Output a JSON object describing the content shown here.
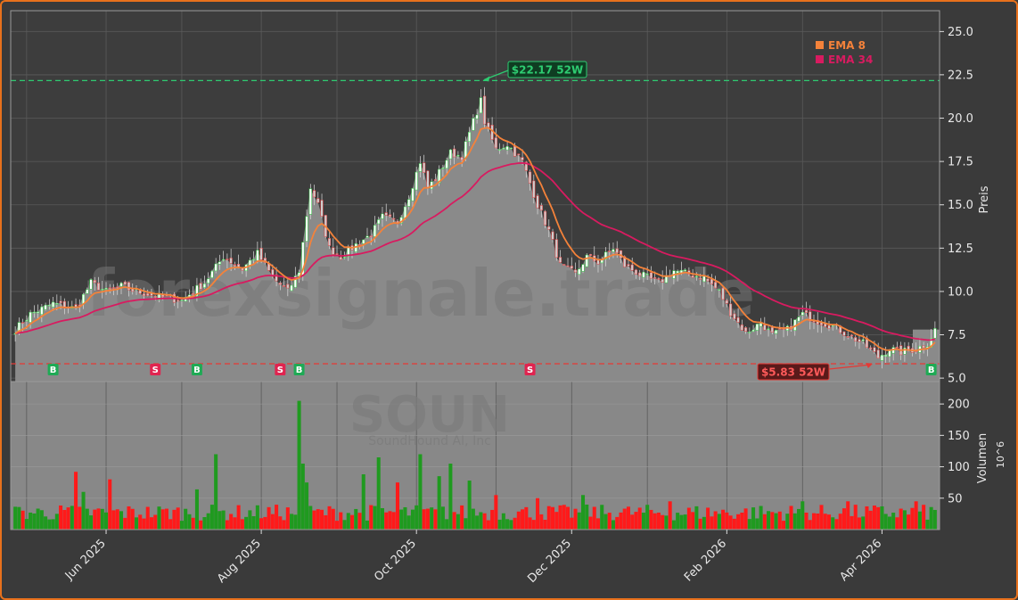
{
  "chart_data": {
    "type": "candlestick",
    "ticker": "SOUN",
    "company": "SoundHound AI, Inc",
    "watermark": "forexsignale.trade",
    "ylabel_price": "Preis",
    "ylabel_volume": "Volumen",
    "volume_unit": "10^6",
    "price_ylim": [
      4.8,
      26.2
    ],
    "price_ticks": [
      5.0,
      7.5,
      10.0,
      12.5,
      15.0,
      17.5,
      20.0,
      22.5,
      25.0
    ],
    "volume_ylim": [
      0,
      230
    ],
    "volume_ticks": [
      50,
      100,
      150,
      200
    ],
    "x_ticks": [
      "Jun 2025",
      "Aug 2025",
      "Oct 2025",
      "Dec 2025",
      "Feb 2026",
      "Apr 2026"
    ],
    "legend": [
      {
        "name": "EMA 8",
        "color": "#f4823a"
      },
      {
        "name": "EMA 34",
        "color": "#d81b60"
      }
    ],
    "high_52w": {
      "value": 22.17,
      "label": "$22.17 52W",
      "color": "#2ecc71"
    },
    "low_52w": {
      "value": 5.83,
      "label": "$5.83 52W",
      "color": "#e53935"
    },
    "signals": [
      {
        "type": "B",
        "date_index": 10
      },
      {
        "type": "S",
        "date_index": 37
      },
      {
        "type": "B",
        "date_index": 48
      },
      {
        "type": "S",
        "date_index": 70
      },
      {
        "type": "B",
        "date_index": 75
      },
      {
        "type": "S",
        "date_index": 136
      },
      {
        "type": "B",
        "date_index": 242
      }
    ],
    "price_anchors": [
      [
        0,
        7.8
      ],
      [
        4,
        8.7
      ],
      [
        10,
        9.3
      ],
      [
        16,
        9.0
      ],
      [
        20,
        10.5
      ],
      [
        24,
        10.0
      ],
      [
        28,
        10.3
      ],
      [
        32,
        10.0
      ],
      [
        38,
        9.7
      ],
      [
        44,
        9.5
      ],
      [
        50,
        10.5
      ],
      [
        55,
        12.0
      ],
      [
        60,
        11.3
      ],
      [
        64,
        12.2
      ],
      [
        68,
        10.8
      ],
      [
        72,
        10.0
      ],
      [
        75,
        11.2
      ],
      [
        78,
        16.0
      ],
      [
        80,
        15.0
      ],
      [
        83,
        12.5
      ],
      [
        86,
        12.0
      ],
      [
        90,
        12.7
      ],
      [
        94,
        13.3
      ],
      [
        97,
        14.3
      ],
      [
        101,
        14.0
      ],
      [
        104,
        15.5
      ],
      [
        107,
        17.5
      ],
      [
        109,
        16.0
      ],
      [
        111,
        16.5
      ],
      [
        115,
        18.0
      ],
      [
        118,
        17.8
      ],
      [
        121,
        19.8
      ],
      [
        123,
        21.0
      ],
      [
        124,
        19.8
      ],
      [
        127,
        18.2
      ],
      [
        130,
        18.5
      ],
      [
        134,
        17.5
      ],
      [
        138,
        15.0
      ],
      [
        141,
        13.5
      ],
      [
        144,
        11.5
      ],
      [
        148,
        11.0
      ],
      [
        151,
        12.0
      ],
      [
        154,
        11.7
      ],
      [
        158,
        12.5
      ],
      [
        161,
        11.5
      ],
      [
        165,
        11.0
      ],
      [
        170,
        10.5
      ],
      [
        174,
        11.2
      ],
      [
        178,
        11.0
      ],
      [
        182,
        10.8
      ],
      [
        186,
        10.0
      ],
      [
        189,
        8.8
      ],
      [
        193,
        7.6
      ],
      [
        197,
        8.2
      ],
      [
        200,
        7.5
      ],
      [
        204,
        7.8
      ],
      [
        208,
        8.7
      ],
      [
        212,
        8.3
      ],
      [
        216,
        8.0
      ],
      [
        220,
        7.5
      ],
      [
        224,
        7.0
      ],
      [
        228,
        6.2
      ],
      [
        231,
        6.7
      ],
      [
        234,
        6.5
      ],
      [
        238,
        6.7
      ],
      [
        241,
        7.0
      ],
      [
        243,
        7.8
      ]
    ],
    "volume_spikes": [
      [
        16,
        92
      ],
      [
        18,
        60
      ],
      [
        25,
        80
      ],
      [
        48,
        64
      ],
      [
        53,
        120
      ],
      [
        75,
        205
      ],
      [
        76,
        105
      ],
      [
        77,
        75
      ],
      [
        92,
        88
      ],
      [
        96,
        115
      ],
      [
        101,
        75
      ],
      [
        107,
        120
      ],
      [
        112,
        85
      ],
      [
        115,
        105
      ],
      [
        120,
        78
      ],
      [
        127,
        55
      ],
      [
        138,
        50
      ],
      [
        150,
        55
      ],
      [
        173,
        45
      ],
      [
        208,
        45
      ],
      [
        220,
        45
      ],
      [
        238,
        45
      ]
    ],
    "last_price": 7.8
  }
}
